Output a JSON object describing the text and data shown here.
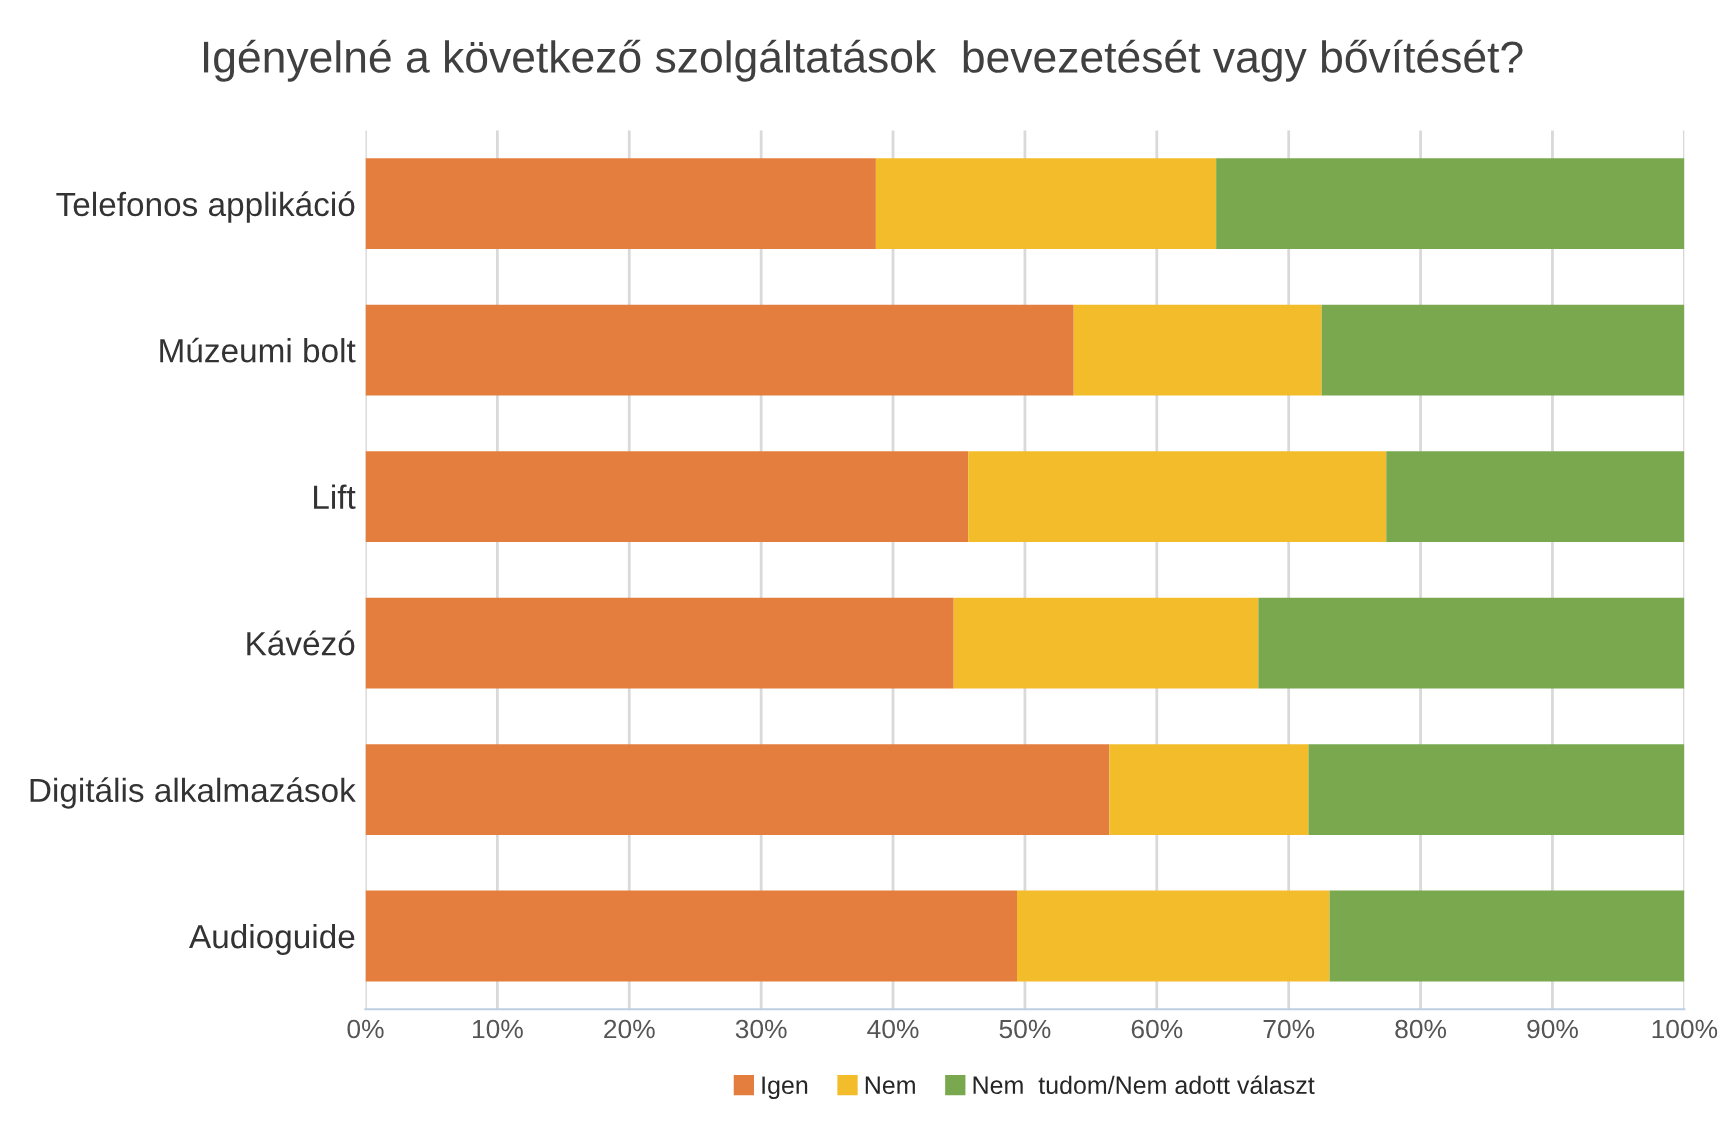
{
  "chart_data": {
    "type": "bar",
    "orientation": "horizontal",
    "stacked": true,
    "title": "Igényelné a következő szolgáltatások  bevezetését vagy bővítését?",
    "categories": [
      "Telefonos applikáció",
      "Múzeumi bolt",
      "Lift",
      "Kávézó",
      "Digitális alkalmazások",
      "Audioguide"
    ],
    "series": [
      {
        "name": "Igen",
        "color": "#e47e3e",
        "values": [
          38.7,
          53.7,
          45.7,
          44.6,
          56.4,
          49.4
        ]
      },
      {
        "name": "Nem",
        "color": "#f3bc2b",
        "values": [
          25.8,
          18.8,
          31.7,
          23.1,
          15.1,
          23.7
        ]
      },
      {
        "name": "Nem  tudom/Nem adott választ",
        "color": "#79a84f",
        "values": [
          35.5,
          27.5,
          22.6,
          32.3,
          28.5,
          26.9
        ]
      }
    ],
    "xlim": [
      0,
      100
    ],
    "xticks": [
      {
        "value": 0,
        "label": "0%"
      },
      {
        "value": 10,
        "label": "10%"
      },
      {
        "value": 20,
        "label": "20%"
      },
      {
        "value": 30,
        "label": "30%"
      },
      {
        "value": 40,
        "label": "40%"
      },
      {
        "value": 50,
        "label": "50%"
      },
      {
        "value": 60,
        "label": "60%"
      },
      {
        "value": 70,
        "label": "70%"
      },
      {
        "value": 80,
        "label": "80%"
      },
      {
        "value": 90,
        "label": "90%"
      },
      {
        "value": 100,
        "label": "100%"
      }
    ],
    "grid": "x",
    "legend": "bottom"
  }
}
